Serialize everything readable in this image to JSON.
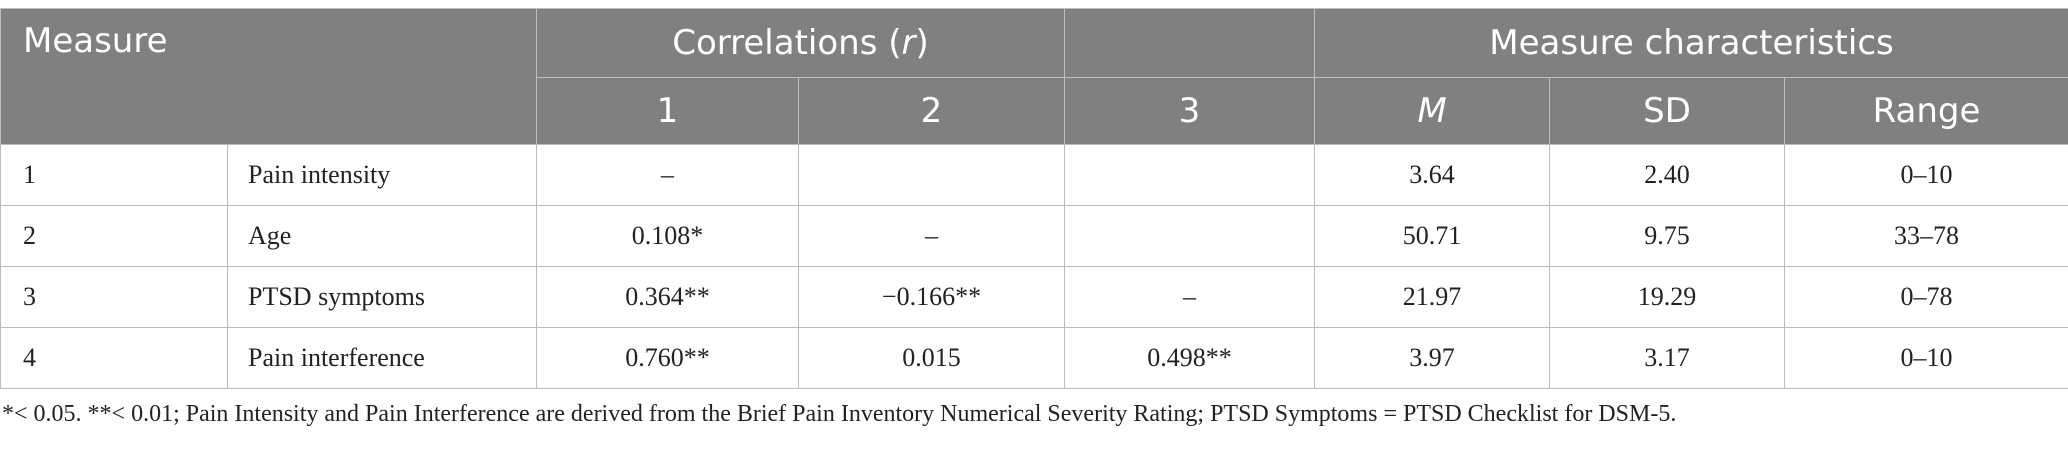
{
  "header": {
    "measure": "Measure",
    "correlations_prefix": "Correlations (",
    "correlations_r": "r",
    "correlations_suffix": ")",
    "characteristics": "Measure characteristics",
    "col_1": "1",
    "col_2": "2",
    "col_3": "3",
    "col_m": "M",
    "col_sd": "SD",
    "col_range": "Range"
  },
  "rows": [
    {
      "num": "1",
      "name": "Pain intensity",
      "c1": "–",
      "c2": "",
      "c3": "",
      "m": "3.64",
      "sd": "2.40",
      "range": "0–10"
    },
    {
      "num": "2",
      "name": "Age",
      "c1": "0.108*",
      "c2": "–",
      "c3": "",
      "m": "50.71",
      "sd": "9.75",
      "range": "33–78"
    },
    {
      "num": "3",
      "name": "PTSD symptoms",
      "c1": "0.364**",
      "c2": "−0.166**",
      "c3": "–",
      "m": "21.97",
      "sd": "19.29",
      "range": "0–78"
    },
    {
      "num": "4",
      "name": "Pain interference",
      "c1": "0.760**",
      "c2": "0.015",
      "c3": "0.498**",
      "m": "3.97",
      "sd": "3.17",
      "range": "0–10"
    }
  ],
  "footnote": "*< 0.05. **< 0.01; Pain Intensity and Pain Interference are derived from the Brief Pain Inventory Numerical Severity Rating; PTSD Symptoms = PTSD Checklist for DSM-5."
}
